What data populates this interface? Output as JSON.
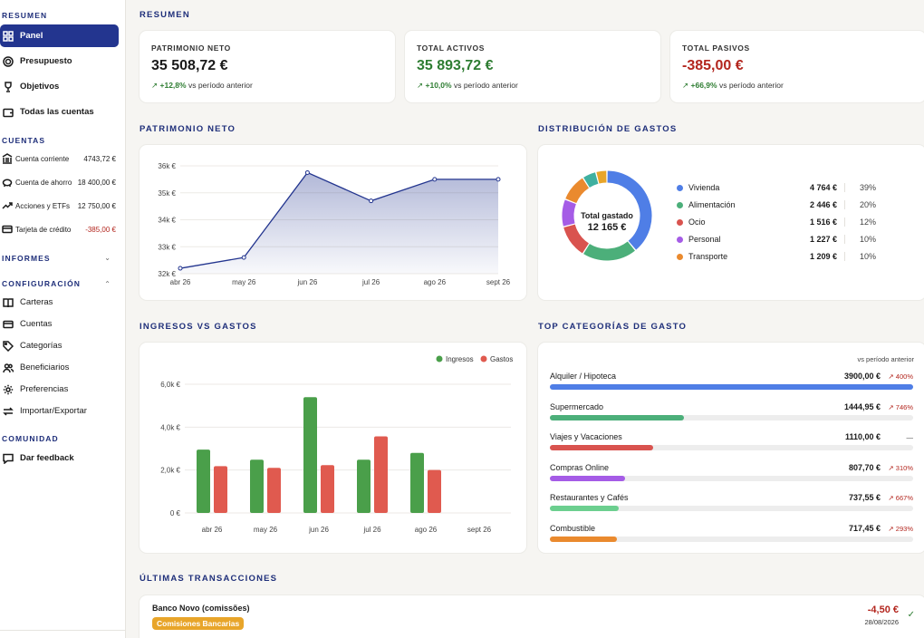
{
  "sidebar": {
    "sections": {
      "resumen": "RESUMEN",
      "cuentas": "CUENTAS",
      "informes": "INFORMES",
      "configuracion": "CONFIGURACIÓN",
      "comunidad": "COMUNIDAD"
    },
    "resumen_items": [
      {
        "label": "Panel",
        "icon": "grid-icon",
        "active": true
      },
      {
        "label": "Presupuesto",
        "icon": "target-icon"
      },
      {
        "label": "Objetivos",
        "icon": "trophy-icon"
      },
      {
        "label": "Todas las cuentas",
        "icon": "wallet-icon"
      }
    ],
    "accounts": [
      {
        "name": "Cuenta corriente",
        "balance": "4743,72 €",
        "icon": "bank-icon"
      },
      {
        "name": "Cuenta de ahorro",
        "balance": "18 400,00 €",
        "icon": "piggy-icon"
      },
      {
        "name": "Acciones y ETFs",
        "balance": "12 750,00 €",
        "icon": "trend-icon"
      },
      {
        "name": "Tarjeta de crédito",
        "balance": "-385,00 €",
        "icon": "card-icon",
        "negative": true
      }
    ],
    "config_items": [
      {
        "label": "Carteras",
        "icon": "book-icon"
      },
      {
        "label": "Cuentas",
        "icon": "card-icon"
      },
      {
        "label": "Categorías",
        "icon": "tag-icon"
      },
      {
        "label": "Beneficiarios",
        "icon": "users-icon"
      },
      {
        "label": "Preferencias",
        "icon": "gear-icon"
      },
      {
        "label": "Importar/Exportar",
        "icon": "swap-icon"
      }
    ],
    "community_items": [
      {
        "label": "Dar feedback",
        "icon": "feedback-icon"
      }
    ]
  },
  "main": {
    "resumen_title": "RESUMEN",
    "kpis": [
      {
        "label": "PATRIMONIO NETO",
        "value": "35 508,72 €",
        "delta": "+12,8%",
        "delta_text": "vs período anterior",
        "tone": "neutral"
      },
      {
        "label": "TOTAL ACTIVOS",
        "value": "35 893,72 €",
        "delta": "+10,0%",
        "delta_text": "vs período anterior",
        "tone": "positive"
      },
      {
        "label": "TOTAL PASIVOS",
        "value": "-385,00 €",
        "delta": "+66,9%",
        "delta_text": "vs período anterior",
        "tone": "negative"
      }
    ],
    "net_worth_title": "PATRIMONIO NETO",
    "expense_dist_title": "DISTRIBUCIÓN DE GASTOS",
    "income_vs_expense_title": "INGRESOS VS GASTOS",
    "top_categories_title": "TOP CATEGORÍAS DE GASTO",
    "top_categories_note": "vs período anterior",
    "last_tx_title": "ÚLTIMAS TRANSACCIONES",
    "donut_center_label": "Total gastado",
    "donut_center_value": "12 165 €"
  },
  "colors": {
    "accent": "#23358f",
    "vivienda": "#4f7ee6",
    "alimentacion": "#4caf7a",
    "ocio": "#d9534f",
    "personal": "#a55ce6",
    "transporte": "#ea8a2e",
    "other1": "#3fb0a0",
    "other2": "#e8a52a",
    "income": "#4a9f4a",
    "expense": "#e05a4f"
  },
  "chart_data": [
    {
      "type": "area",
      "categories": [
        "abr 26",
        "may 26",
        "jun 26",
        "jul 26",
        "ago 26",
        "sept 26"
      ],
      "points": [
        {
          "x": "2026-04-01",
          "y": 32200
        },
        {
          "x": "2026-05-01",
          "y": 32600
        },
        {
          "x": "2026-06-01",
          "y": 35750
        },
        {
          "x": "2026-07-01",
          "y": 34700
        },
        {
          "x": "2026-08-01",
          "y": 35500
        },
        {
          "x": "2026-09-01",
          "y": 35500
        }
      ],
      "ylim": [
        32000,
        36000
      ],
      "yticks": [
        32000,
        33000,
        34000,
        35000,
        36000
      ],
      "ytick_labels": [
        "32k €",
        "33k €",
        "34k €",
        "35k €",
        "36k €"
      ]
    },
    {
      "type": "pie",
      "slices": [
        {
          "label": "Vivienda",
          "amount": "4 764 €",
          "percent": "39%",
          "value": 39,
          "color": "#4f7ee6"
        },
        {
          "label": "Alimentación",
          "amount": "2 446 €",
          "percent": "20%",
          "value": 20,
          "color": "#4caf7a"
        },
        {
          "label": "Ocio",
          "amount": "1 516 €",
          "percent": "12%",
          "value": 12,
          "color": "#d9534f"
        },
        {
          "label": "Personal",
          "amount": "1 227 €",
          "percent": "10%",
          "value": 10,
          "color": "#a55ce6"
        },
        {
          "label": "Transporte",
          "amount": "1 209 €",
          "percent": "10%",
          "value": 10,
          "color": "#ea8a2e"
        },
        {
          "value": 5,
          "color": "#3fb0a0"
        },
        {
          "value": 4,
          "color": "#e8a52a"
        }
      ]
    },
    {
      "type": "bar",
      "categories": [
        "abr 26",
        "may 26",
        "jun 26",
        "jul 26",
        "ago 26",
        "sept 26"
      ],
      "series": [
        {
          "name": "Ingresos",
          "values": [
            2950,
            2480,
            5400,
            2480,
            2800,
            0
          ],
          "color": "#4a9f4a"
        },
        {
          "name": "Gastos",
          "values": [
            2180,
            2100,
            2230,
            3570,
            2000,
            0
          ],
          "color": "#e05a4f"
        }
      ],
      "ylim": [
        0,
        6000
      ],
      "yticks": [
        0,
        2000,
        4000,
        6000
      ],
      "ytick_labels": [
        "0 €",
        "2,0k €",
        "4,0k €",
        "6,0k €"
      ],
      "legend": "top-right"
    },
    {
      "type": "bar",
      "orientation": "horizontal",
      "rows": [
        {
          "label": "Alquiler / Hipoteca",
          "amount": "3900,00 €",
          "change": "400%",
          "fraction": 1.0,
          "color": "#4f7ee6"
        },
        {
          "label": "Supermercado",
          "amount": "1444,95 €",
          "change": "746%",
          "fraction": 0.37,
          "color": "#4caf7a"
        },
        {
          "label": "Viajes y Vacaciones",
          "amount": "1110,00 €",
          "change": "—",
          "fraction": 0.285,
          "color": "#d9534f"
        },
        {
          "label": "Compras Online",
          "amount": "807,70 €",
          "change": "310%",
          "fraction": 0.207,
          "color": "#a55ce6"
        },
        {
          "label": "Restaurantes y Cafés",
          "amount": "737,55 €",
          "change": "667%",
          "fraction": 0.189,
          "color": "#6ccf8f"
        },
        {
          "label": "Combustible",
          "amount": "717,45 €",
          "change": "293%",
          "fraction": 0.184,
          "color": "#ea8a2e"
        }
      ]
    }
  ],
  "transactions": [
    {
      "payee": "Banco Novo (comissões)",
      "category": "Comisiones Bancarias",
      "amount": "-4,50 €",
      "date": "28/08/2026"
    }
  ]
}
